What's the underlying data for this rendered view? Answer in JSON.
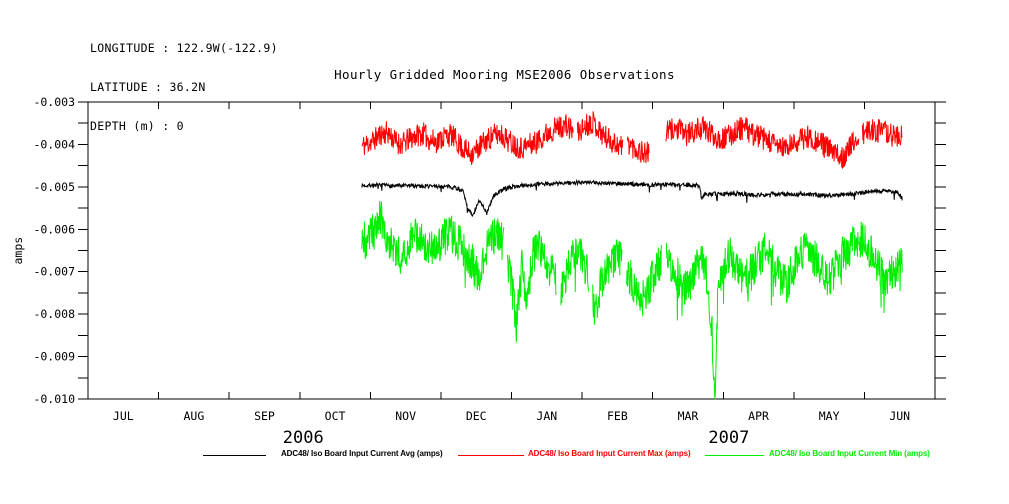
{
  "header": {
    "line1": "LONGITUDE : 122.9W(-122.9)",
    "line2": "LATITUDE : 36.2N",
    "line3": "DEPTH (m) : 0"
  },
  "title": "Hourly Gridded Mooring MSE2006 Observations",
  "legend": {
    "entries": [
      {
        "label": "ADC48/ Iso Board Input Current Avg (amps)",
        "color": "#000000"
      },
      {
        "label": "ADC48/ Iso Board Input Current Max (amps)",
        "color": "#ff0000"
      },
      {
        "label": "ADC48/ Iso Board Input Current Min (amps)",
        "color": "#00ee00"
      }
    ]
  },
  "chart_data": {
    "type": "line",
    "title": "Hourly Gridded Mooring MSE2006 Observations",
    "ylabel": "amps",
    "xlabel": "",
    "axes": {
      "x_start_month": 0,
      "x_end_month": 12,
      "x_unit": "months since 2006-07-01",
      "ylim": [
        -0.01,
        -0.003
      ],
      "y_major_tick_step": 0.001,
      "y_minor_tick_step": 0.0005,
      "grid": false,
      "legend_position": "bottom"
    },
    "y_ticks": [
      {
        "value": -0.003,
        "label": "-0.003"
      },
      {
        "value": -0.004,
        "label": "-0.004"
      },
      {
        "value": -0.005,
        "label": "-0.005"
      },
      {
        "value": -0.006,
        "label": "-0.006"
      },
      {
        "value": -0.007,
        "label": "-0.007"
      },
      {
        "value": -0.008,
        "label": "-0.008"
      },
      {
        "value": -0.009,
        "label": "-0.009"
      },
      {
        "value": -0.01,
        "label": "-0.010"
      }
    ],
    "month_labels": [
      "JUL",
      "AUG",
      "SEP",
      "OCT",
      "NOV",
      "DEC",
      "JAN",
      "FEB",
      "MAR",
      "APR",
      "MAY",
      "JUN"
    ],
    "year_labels": [
      {
        "label": "2006",
        "center_month": 3.05
      },
      {
        "label": "2007",
        "center_month": 9.08
      }
    ],
    "data_start_month": 3.88,
    "data_end_month": 11.54,
    "series": [
      {
        "name": "ADC48/ Iso Board Input Current Avg (amps)",
        "color": "#000000",
        "noise": 5e-05,
        "down_spike": {
          "rate": 0.015,
          "size": 0.00022
        },
        "seed": 7,
        "gaps": [],
        "points": [
          [
            3.88,
            -0.00497
          ],
          [
            4.0,
            -0.00496
          ],
          [
            4.2,
            -0.00497
          ],
          [
            4.4,
            -0.00498
          ],
          [
            4.6,
            -0.00497
          ],
          [
            4.8,
            -0.00498
          ],
          [
            5.0,
            -0.00499
          ],
          [
            5.2,
            -0.00501
          ],
          [
            5.31,
            -0.0051
          ],
          [
            5.38,
            -0.0055
          ],
          [
            5.45,
            -0.0057
          ],
          [
            5.55,
            -0.0053
          ],
          [
            5.65,
            -0.00562
          ],
          [
            5.75,
            -0.0052
          ],
          [
            5.9,
            -0.00504
          ],
          [
            6.05,
            -0.00499
          ],
          [
            6.2,
            -0.00496
          ],
          [
            6.4,
            -0.00494
          ],
          [
            6.6,
            -0.00492
          ],
          [
            6.8,
            -0.00491
          ],
          [
            7.0,
            -0.0049
          ],
          [
            7.2,
            -0.0049
          ],
          [
            7.4,
            -0.00491
          ],
          [
            7.6,
            -0.00493
          ],
          [
            7.8,
            -0.00494
          ],
          [
            8.0,
            -0.00495
          ],
          [
            8.2,
            -0.00494
          ],
          [
            8.4,
            -0.00495
          ],
          [
            8.6,
            -0.00496
          ],
          [
            8.67,
            -0.00498
          ],
          [
            8.69,
            -0.00528
          ],
          [
            8.74,
            -0.00516
          ],
          [
            8.9,
            -0.00517
          ],
          [
            9.1,
            -0.00515
          ],
          [
            9.3,
            -0.00517
          ],
          [
            9.5,
            -0.00519
          ],
          [
            9.7,
            -0.00517
          ],
          [
            9.9,
            -0.00518
          ],
          [
            10.1,
            -0.00517
          ],
          [
            10.3,
            -0.00519
          ],
          [
            10.5,
            -0.0052
          ],
          [
            10.7,
            -0.00518
          ],
          [
            10.9,
            -0.00515
          ],
          [
            11.1,
            -0.00511
          ],
          [
            11.3,
            -0.00509
          ],
          [
            11.45,
            -0.00511
          ],
          [
            11.52,
            -0.00524
          ],
          [
            11.54,
            -0.00528
          ]
        ]
      },
      {
        "name": "ADC48/ Iso Board Input Current Max (amps)",
        "color": "#ff0000",
        "noise": 0.00028,
        "seed": 11,
        "gaps": [
          [
            6.88,
            6.93
          ],
          [
            7.58,
            7.64
          ],
          [
            7.95,
            8.18
          ],
          [
            10.93,
            10.97
          ]
        ],
        "points": [
          [
            3.88,
            -0.00405
          ],
          [
            3.95,
            -0.00398
          ],
          [
            4.05,
            -0.0039
          ],
          [
            4.15,
            -0.00375
          ],
          [
            4.25,
            -0.00372
          ],
          [
            4.35,
            -0.00392
          ],
          [
            4.45,
            -0.004
          ],
          [
            4.55,
            -0.00388
          ],
          [
            4.65,
            -0.00378
          ],
          [
            4.75,
            -0.00375
          ],
          [
            4.85,
            -0.0039
          ],
          [
            4.95,
            -0.00393
          ],
          [
            5.05,
            -0.0038
          ],
          [
            5.15,
            -0.00378
          ],
          [
            5.25,
            -0.00398
          ],
          [
            5.35,
            -0.00415
          ],
          [
            5.45,
            -0.00422
          ],
          [
            5.55,
            -0.00405
          ],
          [
            5.65,
            -0.0039
          ],
          [
            5.75,
            -0.00378
          ],
          [
            5.85,
            -0.00375
          ],
          [
            5.95,
            -0.0039
          ],
          [
            6.05,
            -0.004
          ],
          [
            6.15,
            -0.00408
          ],
          [
            6.25,
            -0.004
          ],
          [
            6.35,
            -0.00395
          ],
          [
            6.45,
            -0.0038
          ],
          [
            6.55,
            -0.00368
          ],
          [
            6.65,
            -0.0036
          ],
          [
            6.75,
            -0.00355
          ],
          [
            6.85,
            -0.00365
          ],
          [
            6.95,
            -0.00372
          ],
          [
            7.05,
            -0.00355
          ],
          [
            7.15,
            -0.00345
          ],
          [
            7.25,
            -0.00368
          ],
          [
            7.35,
            -0.00385
          ],
          [
            7.45,
            -0.00395
          ],
          [
            7.55,
            -0.00405
          ],
          [
            7.65,
            -0.00395
          ],
          [
            7.75,
            -0.0041
          ],
          [
            7.85,
            -0.00418
          ],
          [
            8.0,
            -0.00425
          ],
          [
            8.2,
            -0.00372
          ],
          [
            8.3,
            -0.00362
          ],
          [
            8.4,
            -0.00368
          ],
          [
            8.5,
            -0.00378
          ],
          [
            8.6,
            -0.00368
          ],
          [
            8.7,
            -0.0036
          ],
          [
            8.8,
            -0.00372
          ],
          [
            8.9,
            -0.00382
          ],
          [
            9.0,
            -0.00388
          ],
          [
            9.1,
            -0.00378
          ],
          [
            9.2,
            -0.00365
          ],
          [
            9.3,
            -0.0036
          ],
          [
            9.4,
            -0.00375
          ],
          [
            9.5,
            -0.0038
          ],
          [
            9.6,
            -0.0039
          ],
          [
            9.7,
            -0.00398
          ],
          [
            9.8,
            -0.00405
          ],
          [
            9.9,
            -0.0041
          ],
          [
            10.0,
            -0.00398
          ],
          [
            10.1,
            -0.00388
          ],
          [
            10.2,
            -0.0038
          ],
          [
            10.3,
            -0.0039
          ],
          [
            10.4,
            -0.00398
          ],
          [
            10.5,
            -0.00412
          ],
          [
            10.6,
            -0.00425
          ],
          [
            10.7,
            -0.00428
          ],
          [
            10.8,
            -0.00405
          ],
          [
            10.9,
            -0.00385
          ],
          [
            11.0,
            -0.00375
          ],
          [
            11.1,
            -0.00365
          ],
          [
            11.2,
            -0.00368
          ],
          [
            11.3,
            -0.00372
          ],
          [
            11.4,
            -0.00378
          ],
          [
            11.54,
            -0.00382
          ]
        ]
      },
      {
        "name": "ADC48/ Iso Board Input Current Min (amps)",
        "color": "#00ee00",
        "noise": 0.00045,
        "down_spike": {
          "rate": 0.012,
          "size": 0.0009
        },
        "seed": 23,
        "gaps": [
          [
            5.9,
            5.94
          ],
          [
            6.64,
            6.7
          ],
          [
            7.1,
            7.15
          ],
          [
            7.57,
            7.63
          ],
          [
            8.13,
            8.19
          ]
        ],
        "points": [
          [
            3.88,
            -0.0061
          ],
          [
            3.95,
            -0.0064
          ],
          [
            4.05,
            -0.0059
          ],
          [
            4.15,
            -0.00575
          ],
          [
            4.25,
            -0.0062
          ],
          [
            4.35,
            -0.0065
          ],
          [
            4.45,
            -0.00665
          ],
          [
            4.55,
            -0.0063
          ],
          [
            4.65,
            -0.0061
          ],
          [
            4.75,
            -0.00625
          ],
          [
            4.85,
            -0.0065
          ],
          [
            4.95,
            -0.0064
          ],
          [
            5.05,
            -0.0062
          ],
          [
            5.15,
            -0.0061
          ],
          [
            5.25,
            -0.0063
          ],
          [
            5.35,
            -0.0066
          ],
          [
            5.45,
            -0.0068
          ],
          [
            5.55,
            -0.0072
          ],
          [
            5.62,
            -0.0066
          ],
          [
            5.7,
            -0.0063
          ],
          [
            5.8,
            -0.0061
          ],
          [
            5.9,
            -0.0064
          ],
          [
            6.0,
            -0.0072
          ],
          [
            6.07,
            -0.0083
          ],
          [
            6.15,
            -0.0068
          ],
          [
            6.22,
            -0.0078
          ],
          [
            6.3,
            -0.0066
          ],
          [
            6.4,
            -0.0064
          ],
          [
            6.5,
            -0.0068
          ],
          [
            6.6,
            -0.0071
          ],
          [
            6.7,
            -0.0074
          ],
          [
            6.8,
            -0.0069
          ],
          [
            6.9,
            -0.0065
          ],
          [
            7.0,
            -0.0067
          ],
          [
            7.1,
            -0.0072
          ],
          [
            7.18,
            -0.0079
          ],
          [
            7.3,
            -0.0071
          ],
          [
            7.4,
            -0.0068
          ],
          [
            7.5,
            -0.0066
          ],
          [
            7.6,
            -0.0069
          ],
          [
            7.7,
            -0.0072
          ],
          [
            7.8,
            -0.0075
          ],
          [
            7.9,
            -0.0077
          ],
          [
            8.0,
            -0.0071
          ],
          [
            8.1,
            -0.0068
          ],
          [
            8.2,
            -0.0066
          ],
          [
            8.3,
            -0.0069
          ],
          [
            8.4,
            -0.0072
          ],
          [
            8.5,
            -0.0074
          ],
          [
            8.6,
            -0.0069
          ],
          [
            8.7,
            -0.0066
          ],
          [
            8.78,
            -0.0072
          ],
          [
            8.84,
            -0.0084
          ],
          [
            8.88,
            -0.0099
          ],
          [
            8.93,
            -0.0073
          ],
          [
            9.0,
            -0.0068
          ],
          [
            9.1,
            -0.0066
          ],
          [
            9.2,
            -0.0069
          ],
          [
            9.3,
            -0.0072
          ],
          [
            9.4,
            -0.007
          ],
          [
            9.5,
            -0.0067
          ],
          [
            9.6,
            -0.0065
          ],
          [
            9.7,
            -0.0068
          ],
          [
            9.8,
            -0.0071
          ],
          [
            9.9,
            -0.0073
          ],
          [
            10.0,
            -0.0069
          ],
          [
            10.1,
            -0.0066
          ],
          [
            10.2,
            -0.0064
          ],
          [
            10.3,
            -0.0067
          ],
          [
            10.4,
            -0.007
          ],
          [
            10.5,
            -0.0072
          ],
          [
            10.6,
            -0.0069
          ],
          [
            10.7,
            -0.0066
          ],
          [
            10.8,
            -0.0064
          ],
          [
            10.9,
            -0.0062
          ],
          [
            11.0,
            -0.0063
          ],
          [
            11.1,
            -0.0066
          ],
          [
            11.2,
            -0.0069
          ],
          [
            11.3,
            -0.0072
          ],
          [
            11.4,
            -0.007
          ],
          [
            11.5,
            -0.0068
          ],
          [
            11.54,
            -0.0069
          ]
        ]
      }
    ]
  }
}
